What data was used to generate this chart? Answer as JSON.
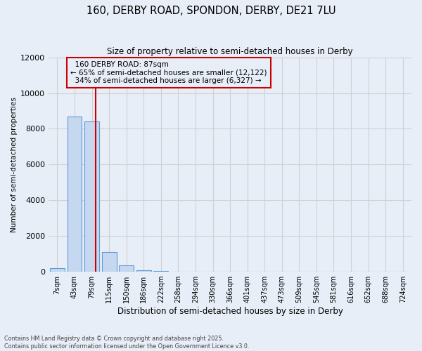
{
  "title_line1": "160, DERBY ROAD, SPONDON, DERBY, DE21 7LU",
  "title_line2": "Size of property relative to semi-detached houses in Derby",
  "xlabel": "Distribution of semi-detached houses by size in Derby",
  "ylabel": "Number of semi-detached properties",
  "footnote1": "Contains HM Land Registry data © Crown copyright and database right 2025.",
  "footnote2": "Contains public sector information licensed under the Open Government Licence v3.0.",
  "bar_labels": [
    "7sqm",
    "43sqm",
    "79sqm",
    "115sqm",
    "150sqm",
    "186sqm",
    "222sqm",
    "258sqm",
    "294sqm",
    "330sqm",
    "366sqm",
    "401sqm",
    "437sqm",
    "473sqm",
    "509sqm",
    "545sqm",
    "581sqm",
    "616sqm",
    "652sqm",
    "688sqm",
    "724sqm"
  ],
  "bar_values": [
    200,
    8700,
    8400,
    1100,
    350,
    90,
    30,
    0,
    0,
    0,
    0,
    0,
    0,
    0,
    0,
    0,
    0,
    0,
    0,
    0,
    0
  ],
  "bar_color": "#c5d8f0",
  "bar_edgecolor": "#5b9bd5",
  "ylim": [
    0,
    12000
  ],
  "yticks": [
    0,
    2000,
    4000,
    6000,
    8000,
    10000,
    12000
  ],
  "property_sqm": 87,
  "property_label": "160 DERBY ROAD: 87sqm",
  "pct_smaller": 65,
  "count_smaller": 12122,
  "pct_larger": 34,
  "count_larger": 6327,
  "vline_color": "#cc0000",
  "annotation_box_edgecolor": "#cc0000",
  "grid_color": "#d0d0d0",
  "background_color": "#e8eef8",
  "plot_bg_color": "#e8eef8"
}
